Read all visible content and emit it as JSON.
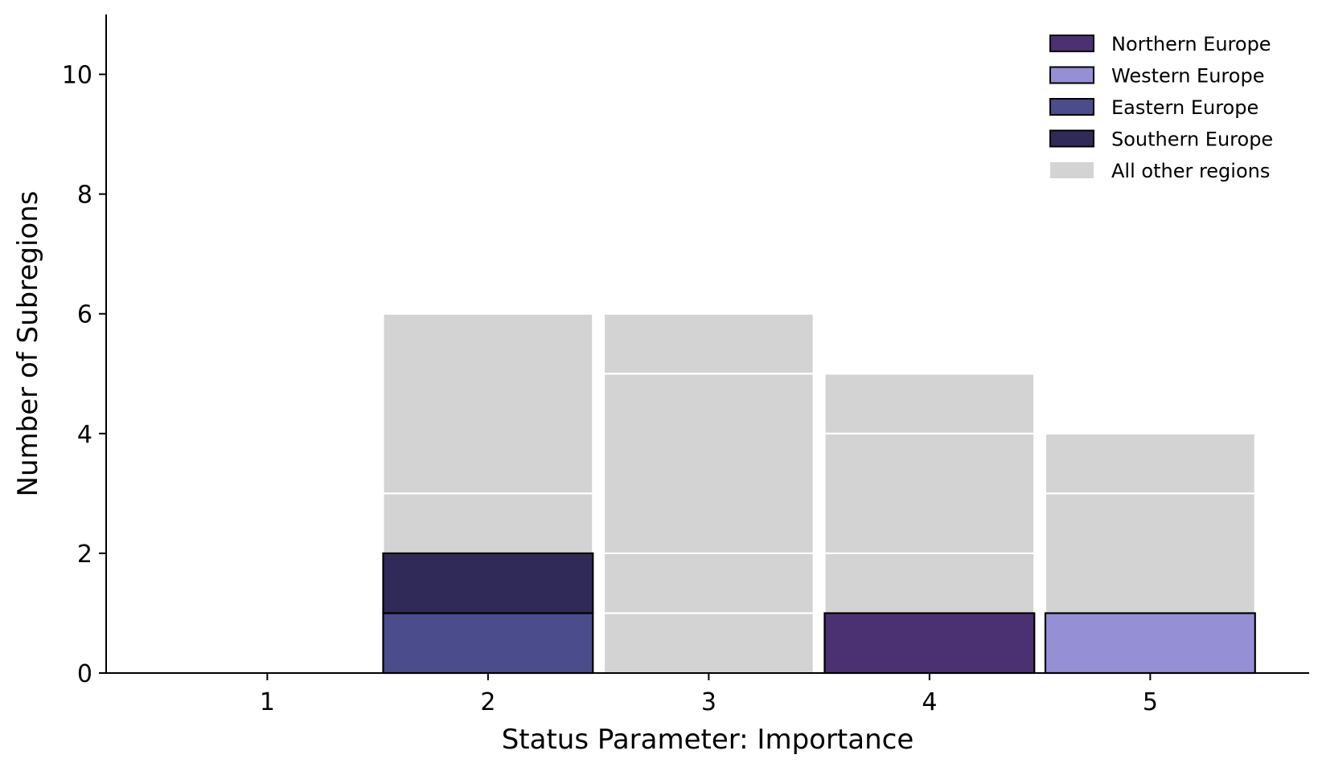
{
  "chart_data": {
    "type": "bar",
    "stacked": true,
    "categories": [
      "1",
      "2",
      "3",
      "4",
      "5"
    ],
    "x": [
      1,
      2,
      3,
      4,
      5
    ],
    "xlabel": "Status Parameter: Importance",
    "ylabel": "Number of Subregions",
    "ylim": [
      0,
      11
    ],
    "yticks": [
      0,
      2,
      4,
      6,
      8,
      10
    ],
    "grid": false,
    "legend_position": "top-right",
    "series": [
      {
        "name": "Northern Europe",
        "color": "#4b3171",
        "outlined": true,
        "segments": [
          [
            4,
            0,
            1
          ]
        ]
      },
      {
        "name": "Western Europe",
        "color": "#958fd6",
        "outlined": true,
        "segments": [
          [
            5,
            0,
            1
          ]
        ]
      },
      {
        "name": "Eastern Europe",
        "color": "#4a4c8c",
        "outlined": true,
        "segments": [
          [
            2,
            0,
            1
          ]
        ]
      },
      {
        "name": "Southern Europe",
        "color": "#302a58",
        "outlined": true,
        "segments": [
          [
            2,
            1,
            2
          ]
        ]
      },
      {
        "name": "All other regions",
        "color": "#d3d3d3",
        "outlined": false,
        "segments": [
          [
            2,
            2,
            3
          ],
          [
            2,
            3,
            6
          ],
          [
            3,
            0,
            1
          ],
          [
            3,
            1,
            2
          ],
          [
            3,
            2,
            5
          ],
          [
            3,
            5,
            6
          ],
          [
            4,
            1,
            2
          ],
          [
            4,
            2,
            4
          ],
          [
            4,
            4,
            5
          ],
          [
            5,
            1,
            3
          ],
          [
            5,
            3,
            4
          ]
        ]
      }
    ]
  }
}
